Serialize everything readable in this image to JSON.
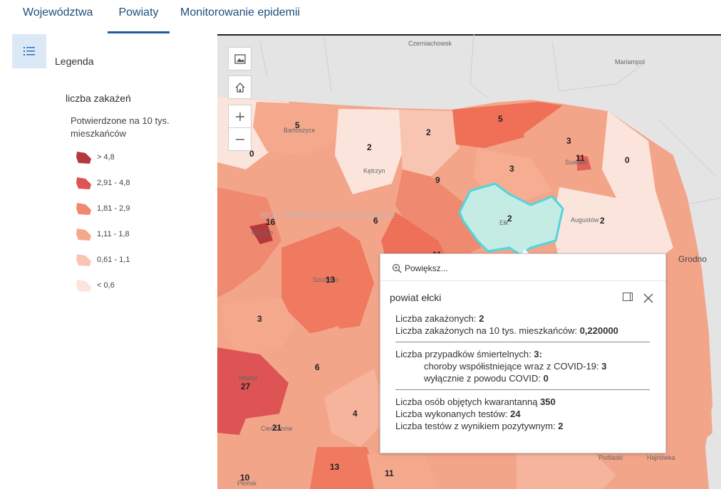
{
  "tabs": [
    {
      "label": "Województwa"
    },
    {
      "label": "Powiaty"
    },
    {
      "label": "Monitorowanie epidemii"
    }
  ],
  "legend": {
    "title": "Legenda",
    "layer": "liczba zakażeń",
    "field": "Potwierdzone na 10 tys. mieszkańców",
    "classes": [
      {
        "label": "> 4,8",
        "color": "#b5383b"
      },
      {
        "label": "2,91 - 4,8",
        "color": "#de5454"
      },
      {
        "label": "1,81 - 2,9",
        "color": "#ef8a70"
      },
      {
        "label": "1,11 - 1,8",
        "color": "#f5a98c"
      },
      {
        "label": "0,61 - 1,1",
        "color": "#f8c5b3"
      },
      {
        "label": "< 0,6",
        "color": "#fbe4dc"
      }
    ]
  },
  "map": {
    "place_labels": [
      "Czerniachowsk",
      "Mariampol",
      "Bartoszyce",
      "Kętrzyn",
      "Suwałki",
      "Augustów",
      "Grodno",
      "WOJ. WARMIŃSKO-MAZURSKIE",
      "Olsztyn",
      "Szczytno",
      "Ełk",
      "Mława",
      "Ciechanów",
      "Płońsk",
      "Podlaski",
      "Hajnówka"
    ],
    "county_values": [
      "5",
      "2",
      "5",
      "3",
      "11",
      "0",
      "0",
      "2",
      "9",
      "3",
      "16",
      "6",
      "2",
      "2",
      "13",
      "11",
      "3",
      "6",
      "27",
      "4",
      "21",
      "13",
      "11",
      "10"
    ],
    "highlight_color": "#c5ece4",
    "highlight_outline": "#4fd6dd"
  },
  "popup": {
    "zoom_label": "Powiększ...",
    "title": "powiat ełcki",
    "cases_label": "Liczba zakażonych: ",
    "cases_value": "2",
    "cases_per10k_label": "Liczba zakażonych na 10 tys. mieszkańców: ",
    "cases_per10k_value": "0,220000",
    "deaths_label": "Liczba przypadków śmiertelnych: ",
    "deaths_value": "3:",
    "comorb_label": "choroby współistniejące wraz z COVID-19: ",
    "comorb_value": "3",
    "covid_only_label": "wyłącznie z powodu COVID: ",
    "covid_only_value": "0",
    "quarantine_label": "Liczba osób objętych kwarantanną ",
    "quarantine_value": "350",
    "tests_label": "Liczba wykonanych testów: ",
    "tests_value": "24",
    "positive_label": "Liczba testów z wynikiem pozytywnym: ",
    "positive_value": "2"
  }
}
